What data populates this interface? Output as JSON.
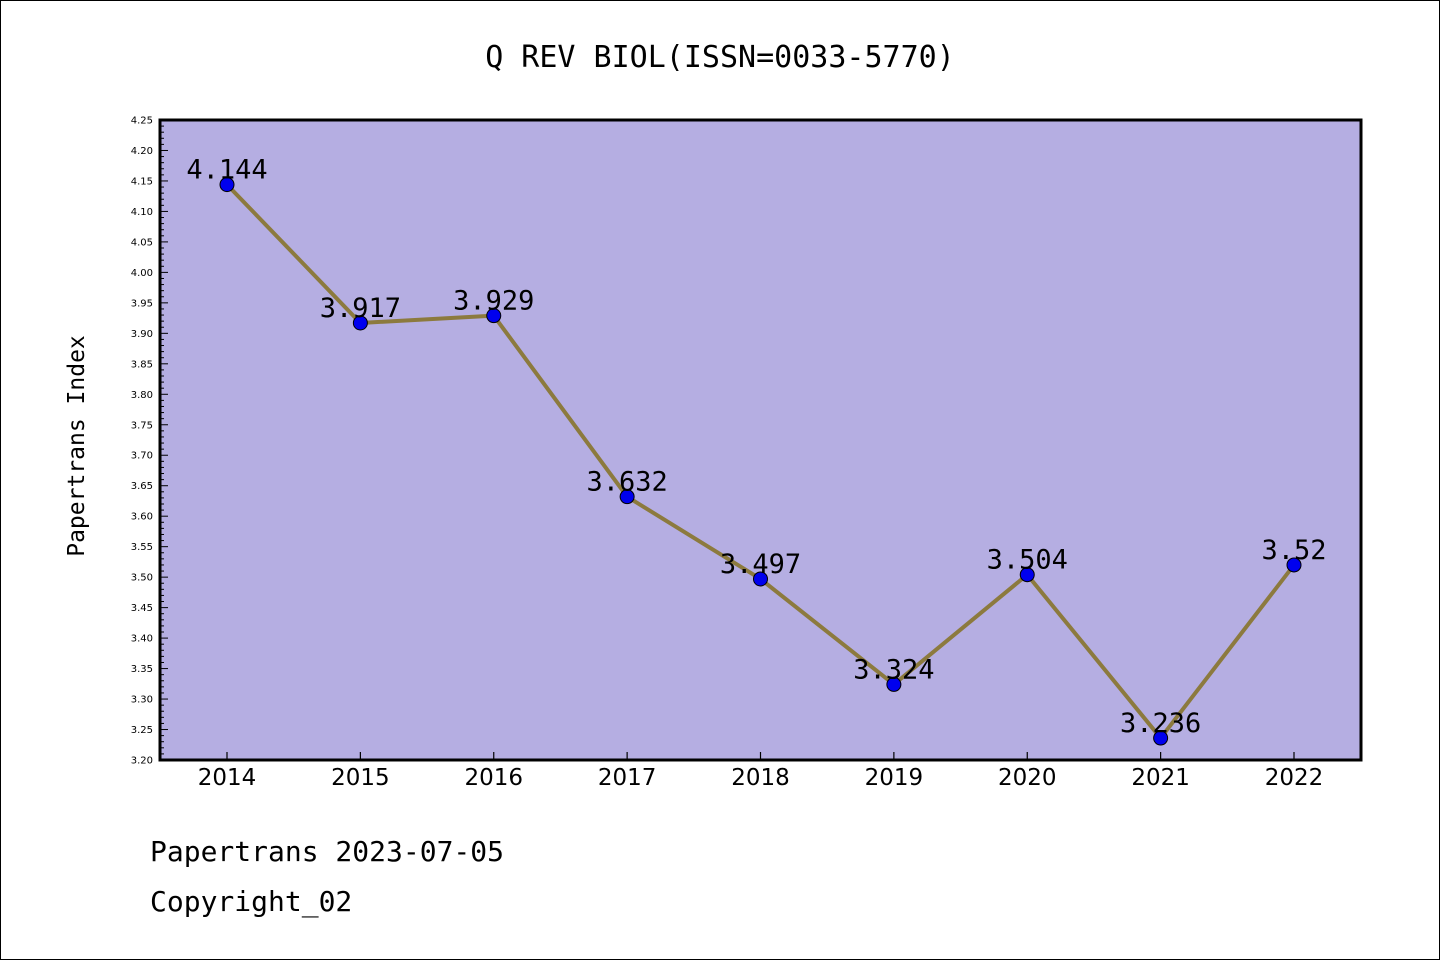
{
  "footer": {
    "line1": "Papertrans 2023-07-05",
    "line2": "Copyright_02"
  },
  "chart_data": {
    "type": "line",
    "title": "Q REV BIOL(ISSN=0033-5770)",
    "xlabel": "",
    "ylabel": "Papertrans Index",
    "categories": [
      "2014",
      "2015",
      "2016",
      "2017",
      "2018",
      "2019",
      "2020",
      "2021",
      "2022"
    ],
    "series": [
      {
        "values": [
          4.144,
          3.917,
          3.929,
          3.632,
          3.497,
          3.324,
          3.504,
          3.236,
          3.52
        ]
      }
    ],
    "data_labels": [
      "4.144",
      "3.917",
      "3.929",
      "3.632",
      "3.497",
      "3.324",
      "3.504",
      "3.236",
      "3.52"
    ],
    "ylim": [
      3.2,
      4.25
    ],
    "yticks": [
      "3.20",
      "3.25",
      "3.30",
      "3.35",
      "3.40",
      "3.45",
      "3.50",
      "3.55",
      "3.60",
      "3.65",
      "3.70",
      "3.75",
      "3.80",
      "3.85",
      "3.90",
      "3.95",
      "4.00",
      "4.05",
      "4.10",
      "4.15",
      "4.20",
      "4.25"
    ],
    "grid": false,
    "legend": "none",
    "colors": {
      "plot_background": "#b5aee2",
      "line": "#8c7a3e",
      "marker": "#0000ee",
      "axis": "#000000"
    }
  }
}
